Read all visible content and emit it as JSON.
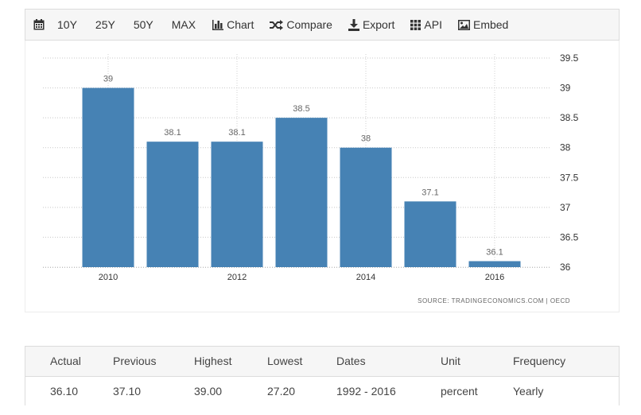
{
  "toolbar": {
    "ranges": [
      "10Y",
      "25Y",
      "50Y",
      "MAX"
    ],
    "tools": [
      {
        "label": "Chart",
        "icon": "bar-chart-icon"
      },
      {
        "label": "Compare",
        "icon": "shuffle-icon"
      },
      {
        "label": "Export",
        "icon": "download-icon"
      },
      {
        "label": "API",
        "icon": "grid-icon"
      },
      {
        "label": "Embed",
        "icon": "image-icon"
      }
    ],
    "calendar_icon": "calendar-icon"
  },
  "chart_data": {
    "type": "bar",
    "categories": [
      "2010",
      "2011",
      "2012",
      "2013",
      "2014",
      "2015",
      "2016"
    ],
    "x_tick_labels": [
      "2010",
      "",
      "2012",
      "",
      "2014",
      "",
      "2016"
    ],
    "values": [
      39,
      38.1,
      38.1,
      38.5,
      38,
      37.1,
      36.1
    ],
    "data_labels": [
      "39",
      "38.1",
      "38.1",
      "38.5",
      "38",
      "37.1",
      "36.1"
    ],
    "ylim": [
      36,
      39.5
    ],
    "y_ticks": [
      "36",
      "36.5",
      "37",
      "37.5",
      "38",
      "38.5",
      "39",
      "39.5"
    ],
    "y_axis_position": "right",
    "grid": "dotted horizontal and vertical",
    "title": "",
    "xlabel": "",
    "ylabel": "",
    "bar_color": "#4682b4",
    "source": "SOURCE: TRADINGECONOMICS.COM  |  OECD"
  },
  "stats": {
    "headers": [
      "Actual",
      "Previous",
      "Highest",
      "Lowest",
      "Dates",
      "Unit",
      "Frequency"
    ],
    "values": [
      "36.10",
      "37.10",
      "39.00",
      "27.20",
      "1992 - 2016",
      "percent",
      "Yearly"
    ]
  }
}
